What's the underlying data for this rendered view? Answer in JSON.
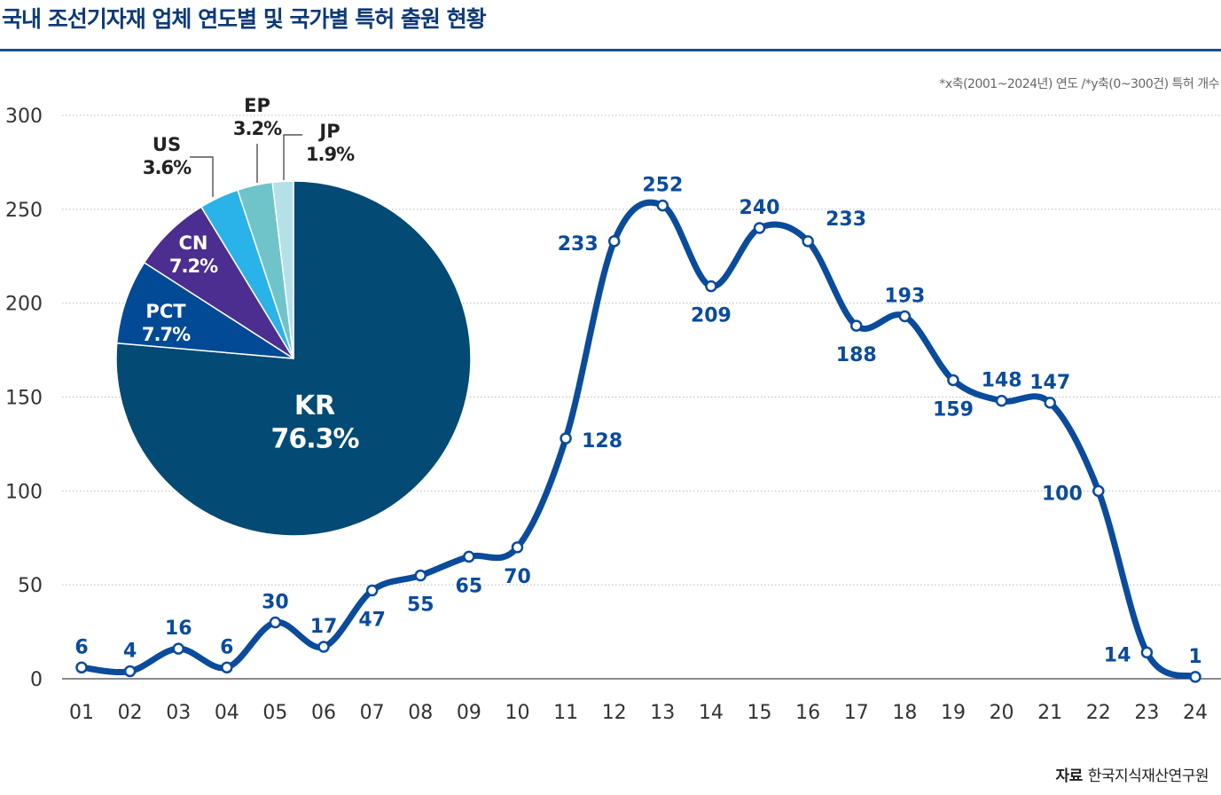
{
  "title": "국내 조선기자재 업체 연도별 및 국가별 특허 출원 현황",
  "note": "*x축(2001~2024년) 연도 /*y축(0~300건) 특허 개수",
  "source_label": "자료",
  "source": "한국지식재산연구원",
  "colors": {
    "line": "#0a4b9c",
    "label": "#0a4b9c",
    "title": "#0d3a78"
  },
  "chart_data": [
    {
      "type": "line",
      "categories": [
        "01",
        "02",
        "03",
        "04",
        "05",
        "06",
        "07",
        "08",
        "09",
        "10",
        "11",
        "12",
        "13",
        "14",
        "15",
        "16",
        "17",
        "18",
        "19",
        "20",
        "21",
        "22",
        "23",
        "24"
      ],
      "values": [
        6,
        4,
        16,
        6,
        30,
        17,
        47,
        55,
        65,
        70,
        128,
        233,
        252,
        209,
        240,
        233,
        188,
        193,
        159,
        148,
        147,
        100,
        14,
        1
      ],
      "yticks": [
        0,
        50,
        100,
        150,
        200,
        250,
        300
      ],
      "ylim": [
        0,
        300
      ],
      "grid": true,
      "smooth": true,
      "data_labels": true
    },
    {
      "type": "pie",
      "slices": [
        {
          "label": "KR",
          "value": 76.3,
          "text": "76.3%",
          "color": "#034a74"
        },
        {
          "label": "PCT",
          "value": 7.7,
          "text": "7.7%",
          "color": "#034a96"
        },
        {
          "label": "CN",
          "value": 7.2,
          "text": "7.2%",
          "color": "#4b2e8f"
        },
        {
          "label": "US",
          "value": 3.6,
          "text": "3.6%",
          "color": "#29b3e8"
        },
        {
          "label": "EP",
          "value": 3.2,
          "text": "3.2%",
          "color": "#6ec4c8"
        },
        {
          "label": "JP",
          "value": 1.9,
          "text": "1.9%",
          "color": "#b4e0e6"
        }
      ]
    }
  ]
}
